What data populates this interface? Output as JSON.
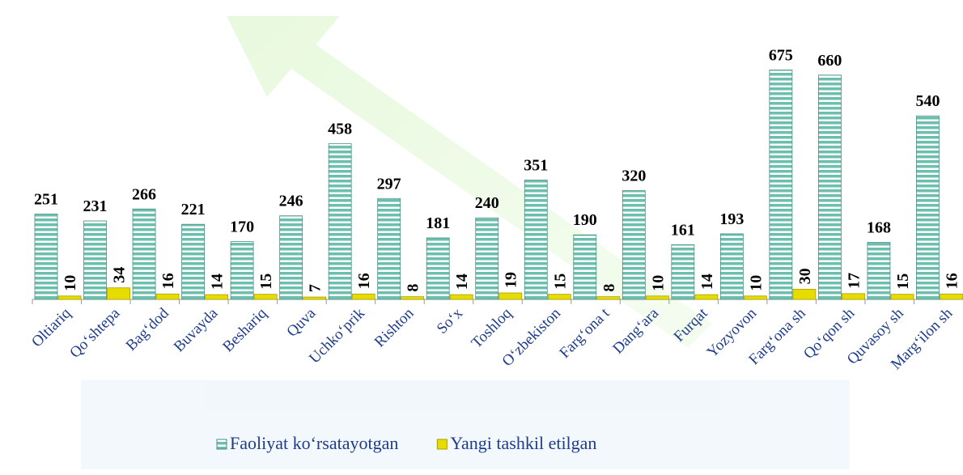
{
  "chart_data": {
    "type": "bar",
    "categories": [
      "Oltiariq",
      "Qo‘shtepa",
      "Bag‘dod",
      "Buvayda",
      "Beshariq",
      "Quva",
      "Uchko‘prik",
      "Rishton",
      "So‘x",
      "Toshloq",
      "O‘zbekiston",
      "Farg‘ona t",
      "Dang‘ara",
      "Furqat",
      "Yozyovon",
      "Farg‘ona sh",
      "Qo‘qon sh",
      "Quvasoy sh",
      "Marg‘ilon sh"
    ],
    "series": [
      {
        "name": "Faoliyat ko‘rsatayotgan",
        "color": "#6cbfae",
        "values": [
          251,
          231,
          266,
          221,
          170,
          246,
          458,
          297,
          181,
          240,
          351,
          190,
          320,
          161,
          193,
          675,
          660,
          168,
          540
        ]
      },
      {
        "name": "Yangi tashkil etilgan",
        "color": "#e6dc00",
        "values": [
          10,
          34,
          16,
          14,
          15,
          7,
          16,
          8,
          14,
          19,
          15,
          8,
          10,
          14,
          10,
          30,
          17,
          15,
          16
        ]
      }
    ]
  }
}
